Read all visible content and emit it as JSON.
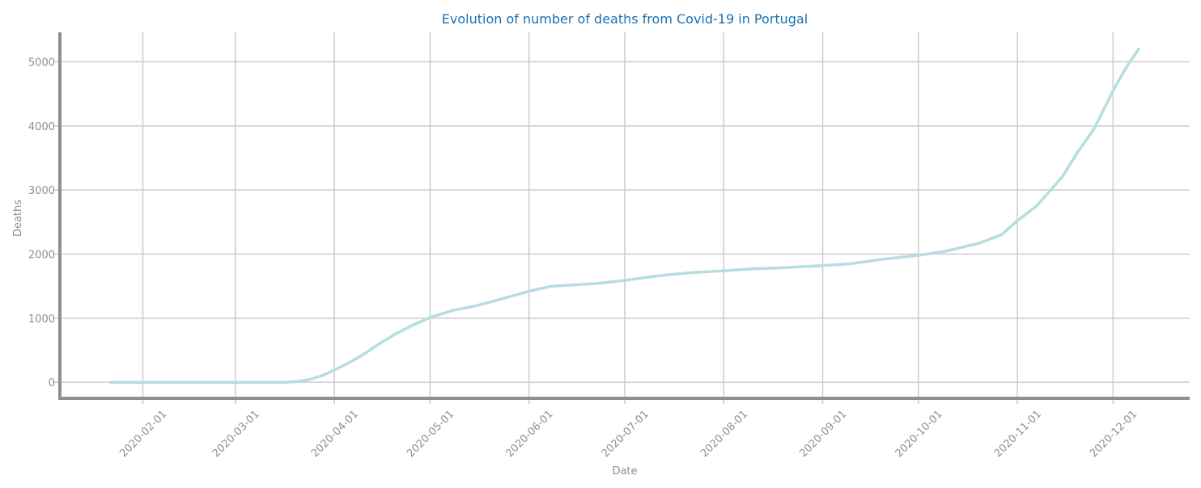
{
  "colors": {
    "title": "#1a6fb0",
    "text": "#8f8f8f",
    "grid": "#cccccc",
    "axis": "#8f8f8f",
    "line": "#b6dde0",
    "background": "#ffffff"
  },
  "chart_data": {
    "type": "line",
    "title": "Evolution of number of deaths from Covid-19 in Portugal",
    "xlabel": "Date",
    "ylabel": "Deaths",
    "grid": true,
    "x_range": [
      "2020-01-06",
      "2020-12-25"
    ],
    "ylim": [
      -250,
      5460
    ],
    "x_ticks": [
      "2020-02-01",
      "2020-03-01",
      "2020-04-01",
      "2020-05-01",
      "2020-06-01",
      "2020-07-01",
      "2020-08-01",
      "2020-09-01",
      "2020-10-01",
      "2020-11-01",
      "2020-12-01"
    ],
    "y_ticks": [
      0,
      1000,
      2000,
      3000,
      4000,
      5000
    ],
    "series": [
      {
        "x": [
          "2020-01-22",
          "2020-02-15",
          "2020-03-01",
          "2020-03-16",
          "2020-03-20",
          "2020-03-24",
          "2020-03-28",
          "2020-04-01",
          "2020-04-05",
          "2020-04-10",
          "2020-04-15",
          "2020-04-20",
          "2020-04-25",
          "2020-05-01",
          "2020-05-08",
          "2020-05-15",
          "2020-05-22",
          "2020-06-01",
          "2020-06-08",
          "2020-06-15",
          "2020-06-22",
          "2020-07-01",
          "2020-07-08",
          "2020-07-15",
          "2020-07-22",
          "2020-08-01",
          "2020-08-10",
          "2020-08-20",
          "2020-09-01",
          "2020-09-10",
          "2020-09-20",
          "2020-10-01",
          "2020-10-10",
          "2020-10-20",
          "2020-10-27",
          "2020-11-01",
          "2020-11-07",
          "2020-11-15",
          "2020-11-20",
          "2020-11-25",
          "2020-12-01",
          "2020-12-05",
          "2020-12-09"
        ],
        "y": [
          0,
          0,
          0,
          0,
          10,
          40,
          100,
          190,
          290,
          430,
          600,
          750,
          880,
          1010,
          1120,
          1190,
          1280,
          1420,
          1500,
          1520,
          1540,
          1590,
          1640,
          1680,
          1710,
          1740,
          1770,
          1790,
          1820,
          1850,
          1920,
          1980,
          2050,
          2170,
          2300,
          2520,
          2750,
          3200,
          3600,
          3950,
          4550,
          4900,
          5200
        ]
      }
    ]
  }
}
